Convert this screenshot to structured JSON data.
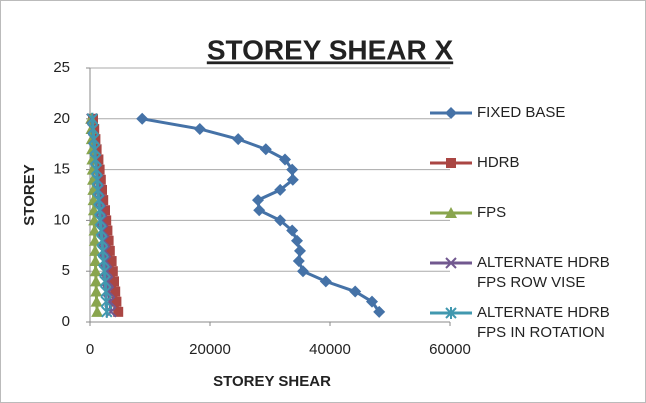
{
  "chart_data": {
    "type": "line",
    "title": "STOREY SHEAR X",
    "x_label": "STOREY SHEAR",
    "y_label": "STOREY",
    "y": [
      20,
      19,
      18,
      17,
      16,
      15,
      14,
      13,
      12,
      11,
      10,
      9,
      8,
      7,
      6,
      5,
      4,
      3,
      2,
      1
    ],
    "series": [
      {
        "name": "FIXED BASE",
        "color": "#4572a7",
        "marker": "diamond",
        "values": [
          8700,
          18300,
          24700,
          29300,
          32500,
          33700,
          33800,
          31700,
          28000,
          28200,
          31700,
          33700,
          34500,
          35000,
          34800,
          35500,
          39300,
          44200,
          47000,
          48200
        ]
      },
      {
        "name": "HDRB",
        "color": "#aa4643",
        "marker": "square",
        "values": [
          500,
          700,
          900,
          1100,
          1400,
          1600,
          1800,
          2000,
          2200,
          2500,
          2700,
          2900,
          3100,
          3300,
          3600,
          3800,
          4000,
          4200,
          4400,
          4700
        ]
      },
      {
        "name": "FPS",
        "color": "#89a54e",
        "marker": "triangle",
        "values": [
          200,
          250,
          300,
          350,
          400,
          450,
          500,
          550,
          600,
          650,
          700,
          750,
          800,
          850,
          900,
          950,
          1000,
          1050,
          1100,
          1200
        ]
      },
      {
        "name": "ALTERNATE HDRB FPS ROW VISE",
        "color": "#71588f",
        "marker": "x",
        "values": [
          300,
          450,
          600,
          800,
          950,
          1100,
          1300,
          1450,
          1600,
          1800,
          1950,
          2100,
          2300,
          2450,
          2600,
          2800,
          2950,
          3100,
          3300,
          3500
        ]
      },
      {
        "name": "ALTERNATE HDRB FPS IN ROTATION",
        "color": "#4198af",
        "marker": "star",
        "values": [
          400,
          500,
          650,
          800,
          900,
          1050,
          1200,
          1300,
          1450,
          1600,
          1700,
          1850,
          2000,
          2100,
          2250,
          2400,
          2500,
          2650,
          2700,
          2800
        ]
      }
    ],
    "xlim": [
      0,
      60000
    ],
    "xticks": [
      0,
      20000,
      40000,
      60000
    ],
    "ylim": [
      0,
      25
    ],
    "yticks": [
      0,
      5,
      10,
      15,
      20,
      25
    ],
    "grid": true,
    "legend": "right"
  }
}
